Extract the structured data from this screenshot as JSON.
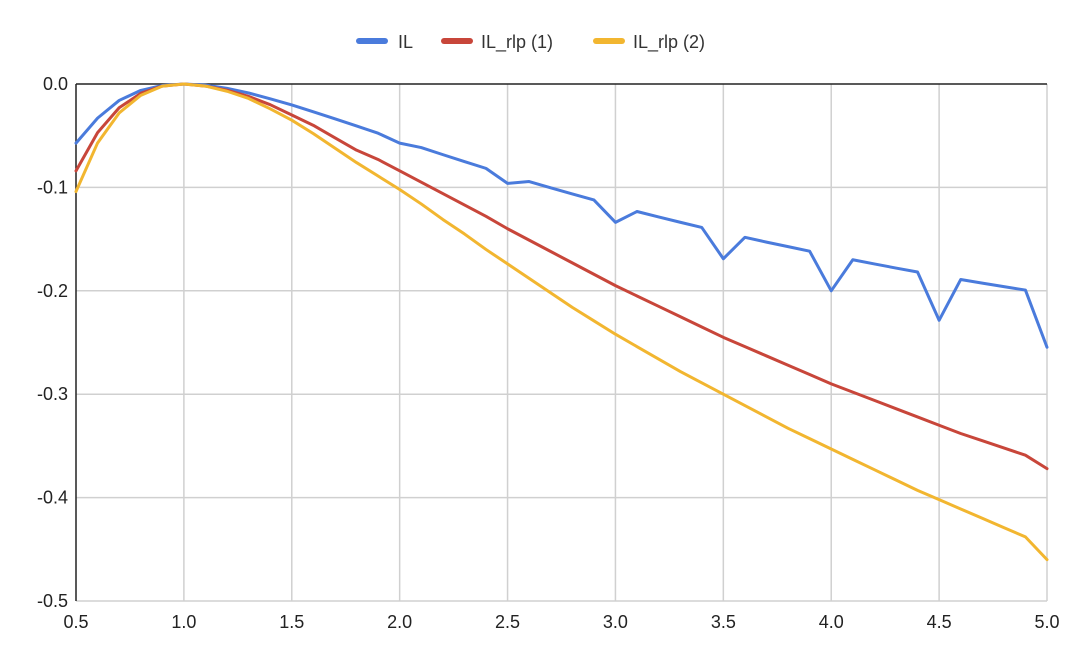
{
  "chart_data": {
    "type": "line",
    "title": "",
    "xlabel": "",
    "ylabel": "",
    "xlim": [
      0.5,
      5.0
    ],
    "ylim": [
      -0.5,
      0.0
    ],
    "x_ticks": [
      0.5,
      1.0,
      1.5,
      2.0,
      2.5,
      3.0,
      3.5,
      4.0,
      4.5,
      5.0
    ],
    "y_ticks": [
      0.0,
      -0.1,
      -0.2,
      -0.3,
      -0.4,
      -0.5
    ],
    "x_tick_labels": [
      "0.5",
      "1.0",
      "1.5",
      "2.0",
      "2.5",
      "3.0",
      "3.5",
      "4.0",
      "4.5",
      "5.0"
    ],
    "y_tick_labels": [
      "0.0",
      "-0.1",
      "-0.2",
      "-0.3",
      "-0.4",
      "-0.5"
    ],
    "grid": true,
    "legend_position": "top-center",
    "x": [
      0.5,
      0.6,
      0.7,
      0.8,
      0.9,
      1.0,
      1.1,
      1.2,
      1.3,
      1.4,
      1.5,
      1.6,
      1.7,
      1.8,
      1.9,
      2.0,
      2.1,
      2.2,
      2.3,
      2.4,
      2.5,
      2.6,
      2.7,
      2.8,
      2.9,
      3.0,
      3.1,
      3.2,
      3.3,
      3.4,
      3.5,
      3.6,
      3.7,
      3.8,
      3.9,
      4.0,
      4.1,
      4.2,
      4.3,
      4.4,
      4.5,
      4.6,
      4.7,
      4.8,
      4.9,
      5.0
    ],
    "series": [
      {
        "name": "IL",
        "color": "#4a7bdc",
        "values": [
          -0.0572,
          -0.033,
          -0.0159,
          -0.0062,
          -0.0014,
          0.0,
          -0.0011,
          -0.0042,
          -0.0087,
          -0.0143,
          -0.0202,
          -0.0269,
          -0.0337,
          -0.0406,
          -0.0476,
          -0.0572,
          -0.0615,
          -0.0683,
          -0.075,
          -0.0816,
          -0.0961,
          -0.0943,
          -0.1004,
          -0.1063,
          -0.1121,
          -0.1338,
          -0.1233,
          -0.1286,
          -0.1337,
          -0.1387,
          -0.169,
          -0.1483,
          -0.1529,
          -0.1573,
          -0.1617,
          -0.2,
          -0.17,
          -0.174,
          -0.178,
          -0.1818,
          -0.2285,
          -0.1891,
          -0.1926,
          -0.196,
          -0.1993,
          -0.2546
        ]
      },
      {
        "name": "IL_rlp (1)",
        "color": "#c8463a",
        "values": [
          -0.084,
          -0.047,
          -0.023,
          -0.009,
          -0.002,
          0.0,
          -0.002,
          -0.006,
          -0.012,
          -0.02,
          -0.03,
          -0.04,
          -0.052,
          -0.064,
          -0.073,
          -0.084,
          -0.095,
          -0.106,
          -0.117,
          -0.128,
          -0.14,
          -0.151,
          -0.162,
          -0.173,
          -0.184,
          -0.195,
          -0.205,
          -0.215,
          -0.225,
          -0.235,
          -0.245,
          -0.254,
          -0.263,
          -0.272,
          -0.281,
          -0.29,
          -0.298,
          -0.306,
          -0.314,
          -0.322,
          -0.33,
          -0.338,
          -0.345,
          -0.352,
          -0.359,
          -0.372
        ]
      },
      {
        "name": "IL_rlp (2)",
        "color": "#f2b630",
        "values": [
          -0.104,
          -0.057,
          -0.028,
          -0.011,
          -0.002,
          0.0,
          -0.002,
          -0.007,
          -0.014,
          -0.024,
          -0.035,
          -0.048,
          -0.062,
          -0.076,
          -0.089,
          -0.102,
          -0.116,
          -0.131,
          -0.145,
          -0.16,
          -0.174,
          -0.188,
          -0.202,
          -0.216,
          -0.229,
          -0.242,
          -0.254,
          -0.266,
          -0.278,
          -0.289,
          -0.3,
          -0.311,
          -0.322,
          -0.333,
          -0.343,
          -0.353,
          -0.363,
          -0.373,
          -0.383,
          -0.393,
          -0.402,
          -0.411,
          -0.42,
          -0.429,
          -0.438,
          -0.46
        ]
      }
    ]
  }
}
